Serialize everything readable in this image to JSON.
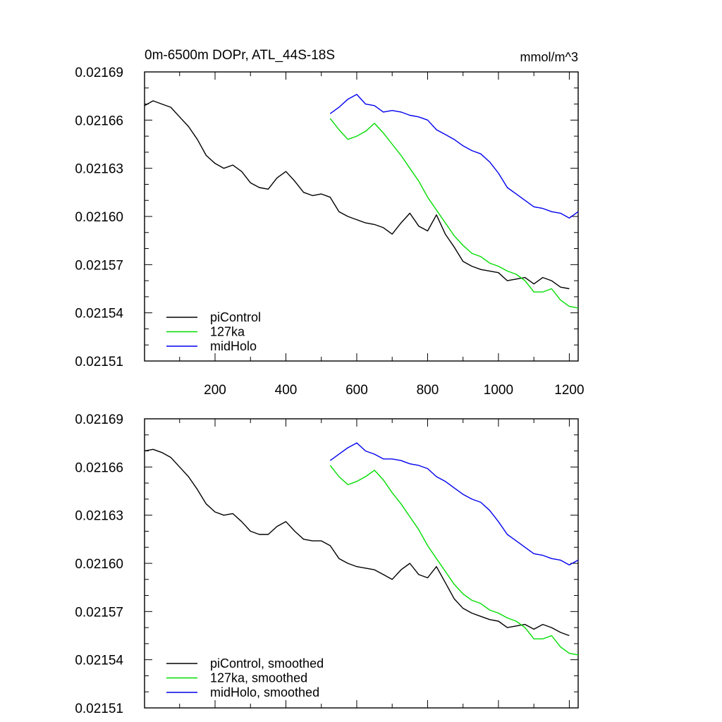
{
  "chart_data": [
    {
      "type": "line",
      "title": "0m-6500m DOPr, ATL_44S-18S",
      "units": "mmol/m^3",
      "xlabel": "",
      "ylabel": "",
      "xlim": [
        1,
        1225
      ],
      "ylim": [
        0.02151,
        0.02169
      ],
      "x_ticks": [
        200,
        400,
        600,
        800,
        1000,
        1200
      ],
      "x_tick_labels": [
        "200",
        "400",
        "600",
        "800",
        "1000",
        "1200"
      ],
      "y_ticks": [
        0.02151,
        0.02154,
        0.02157,
        0.0216,
        0.02163,
        0.02166,
        0.02169
      ],
      "y_tick_labels": [
        "0.02151",
        "0.02154",
        "0.02157",
        "0.02160",
        "0.02163",
        "0.02166",
        "0.02169"
      ],
      "legend_position": "bottom-left",
      "series": [
        {
          "name": "piControl",
          "color": "#000000",
          "x": [
            1,
            25,
            50,
            75,
            100,
            125,
            150,
            175,
            200,
            225,
            250,
            275,
            300,
            325,
            350,
            375,
            400,
            425,
            450,
            475,
            500,
            525,
            550,
            575,
            600,
            625,
            650,
            675,
            700,
            725,
            750,
            775,
            800,
            825,
            850,
            875,
            900,
            925,
            950,
            975,
            1000,
            1025,
            1050,
            1075,
            1100,
            1125,
            1150,
            1175,
            1200
          ],
          "values": [
            0.021669,
            0.021672,
            0.02167,
            0.021668,
            0.021662,
            0.021656,
            0.021648,
            0.021638,
            0.021633,
            0.02163,
            0.021632,
            0.021628,
            0.021621,
            0.021618,
            0.021617,
            0.021624,
            0.021628,
            0.021622,
            0.021615,
            0.021613,
            0.021614,
            0.021612,
            0.021603,
            0.0216,
            0.021598,
            0.021596,
            0.021595,
            0.021593,
            0.021589,
            0.021596,
            0.021602,
            0.021594,
            0.021591,
            0.021601,
            0.021589,
            0.021581,
            0.021572,
            0.021569,
            0.021567,
            0.021566,
            0.021565,
            0.02156,
            0.021561,
            0.021562,
            0.021558,
            0.021562,
            0.02156,
            0.021556,
            0.021555
          ]
        },
        {
          "name": "127ka",
          "color": "#00dd00",
          "x": [
            525,
            550,
            575,
            600,
            625,
            650,
            675,
            700,
            725,
            750,
            775,
            800,
            825,
            850,
            875,
            900,
            925,
            950,
            975,
            1000,
            1025,
            1050,
            1075,
            1100,
            1125,
            1150,
            1175,
            1200,
            1225
          ],
          "values": [
            0.021661,
            0.021654,
            0.021648,
            0.02165,
            0.021653,
            0.021658,
            0.021652,
            0.021645,
            0.021638,
            0.02163,
            0.021622,
            0.021612,
            0.021604,
            0.021596,
            0.021588,
            0.021582,
            0.021577,
            0.021575,
            0.021571,
            0.021569,
            0.021566,
            0.021564,
            0.02156,
            0.021553,
            0.021553,
            0.021555,
            0.021548,
            0.021544,
            0.021543
          ]
        },
        {
          "name": "midHolo",
          "color": "#0000ee",
          "x": [
            525,
            550,
            575,
            600,
            625,
            650,
            675,
            700,
            725,
            750,
            775,
            800,
            825,
            850,
            875,
            900,
            925,
            950,
            975,
            1000,
            1025,
            1050,
            1075,
            1100,
            1125,
            1150,
            1175,
            1200,
            1225
          ],
          "values": [
            0.021664,
            0.021668,
            0.021673,
            0.021676,
            0.02167,
            0.021669,
            0.021665,
            0.021666,
            0.021665,
            0.021663,
            0.021662,
            0.02166,
            0.021654,
            0.021651,
            0.021648,
            0.021644,
            0.021641,
            0.021639,
            0.021634,
            0.021627,
            0.021618,
            0.021614,
            0.02161,
            0.021606,
            0.021605,
            0.021603,
            0.021602,
            0.021599,
            0.021603
          ]
        }
      ]
    },
    {
      "type": "line",
      "title": "",
      "xlabel": "",
      "ylabel": "",
      "xlim": [
        1,
        1225
      ],
      "ylim": [
        0.02151,
        0.02169
      ],
      "x_ticks": [
        200,
        400,
        600,
        800,
        1000,
        1200
      ],
      "y_ticks": [
        0.02151,
        0.02154,
        0.02157,
        0.0216,
        0.02163,
        0.02166,
        0.02169
      ],
      "y_tick_labels": [
        "0.02151",
        "0.02154",
        "0.02157",
        "0.02160",
        "0.02163",
        "0.02166",
        "0.02169"
      ],
      "legend_position": "bottom-left",
      "series": [
        {
          "name": "piControl, smoothed",
          "color": "#000000",
          "x": [
            1,
            25,
            50,
            75,
            100,
            125,
            150,
            175,
            200,
            225,
            250,
            275,
            300,
            325,
            350,
            375,
            400,
            425,
            450,
            475,
            500,
            525,
            550,
            575,
            600,
            625,
            650,
            675,
            700,
            725,
            750,
            775,
            800,
            825,
            850,
            875,
            900,
            925,
            950,
            975,
            1000,
            1025,
            1050,
            1075,
            1100,
            1125,
            1150,
            1175,
            1200
          ],
          "values": [
            0.02167,
            0.021671,
            0.021669,
            0.021666,
            0.02166,
            0.021654,
            0.021646,
            0.021637,
            0.021632,
            0.02163,
            0.021631,
            0.021626,
            0.02162,
            0.021618,
            0.021618,
            0.021623,
            0.021626,
            0.02162,
            0.021615,
            0.021614,
            0.021614,
            0.021611,
            0.021603,
            0.0216,
            0.021598,
            0.021597,
            0.021596,
            0.021593,
            0.02159,
            0.021596,
            0.0216,
            0.021593,
            0.021591,
            0.021598,
            0.021588,
            0.021578,
            0.021572,
            0.021569,
            0.021567,
            0.021565,
            0.021564,
            0.02156,
            0.021561,
            0.021562,
            0.021559,
            0.021562,
            0.02156,
            0.021557,
            0.021555
          ]
        },
        {
          "name": "127ka, smoothed",
          "color": "#00dd00",
          "x": [
            525,
            550,
            575,
            600,
            625,
            650,
            675,
            700,
            725,
            750,
            775,
            800,
            825,
            850,
            875,
            900,
            925,
            950,
            975,
            1000,
            1025,
            1050,
            1075,
            1100,
            1125,
            1150,
            1175,
            1200,
            1225
          ],
          "values": [
            0.021661,
            0.021654,
            0.021649,
            0.021651,
            0.021654,
            0.021658,
            0.021652,
            0.021644,
            0.021637,
            0.021629,
            0.021621,
            0.021611,
            0.021603,
            0.021595,
            0.021587,
            0.021581,
            0.021577,
            0.021575,
            0.021571,
            0.021569,
            0.021566,
            0.021564,
            0.02156,
            0.021553,
            0.021553,
            0.021555,
            0.021548,
            0.021544,
            0.021543
          ]
        },
        {
          "name": "midHolo, smoothed",
          "color": "#0000ee",
          "x": [
            525,
            550,
            575,
            600,
            625,
            650,
            675,
            700,
            725,
            750,
            775,
            800,
            825,
            850,
            875,
            900,
            925,
            950,
            975,
            1000,
            1025,
            1050,
            1075,
            1100,
            1125,
            1150,
            1175,
            1200,
            1225
          ],
          "values": [
            0.021664,
            0.021668,
            0.021672,
            0.021675,
            0.02167,
            0.021668,
            0.021665,
            0.021665,
            0.021664,
            0.021662,
            0.021661,
            0.021659,
            0.021654,
            0.021651,
            0.021647,
            0.021643,
            0.02164,
            0.021638,
            0.021633,
            0.021626,
            0.021618,
            0.021614,
            0.02161,
            0.021606,
            0.021605,
            0.021603,
            0.021602,
            0.021599,
            0.021602
          ]
        }
      ]
    }
  ]
}
